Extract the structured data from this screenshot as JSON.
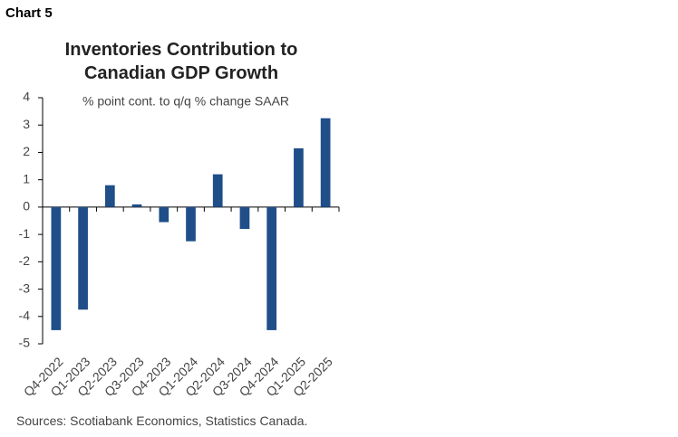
{
  "label": "Chart 5",
  "source": "Sources: Scotiabank Economics, Statistics Canada.",
  "chart_data": {
    "type": "bar",
    "title": "Inventories Contribution to Canadian GDP Growth",
    "subtitle": "% point cont. to q/q % change SAAR",
    "categories": [
      "Q4-2022",
      "Q1-2023",
      "Q2-2023",
      "Q3-2023",
      "Q4-2023",
      "Q1-2024",
      "Q2-2024",
      "Q3-2024",
      "Q4-2024",
      "Q1-2025",
      "Q2-2025"
    ],
    "values": [
      -4.5,
      -3.75,
      0.8,
      0.1,
      -0.55,
      -1.25,
      1.2,
      -0.8,
      -4.5,
      2.15,
      3.25
    ],
    "color": "#1f4e89",
    "ylim": [
      -5,
      4
    ],
    "yticks": [
      -5,
      -4,
      -3,
      -2,
      -1,
      0,
      1,
      2,
      3,
      4
    ],
    "grid": false
  }
}
